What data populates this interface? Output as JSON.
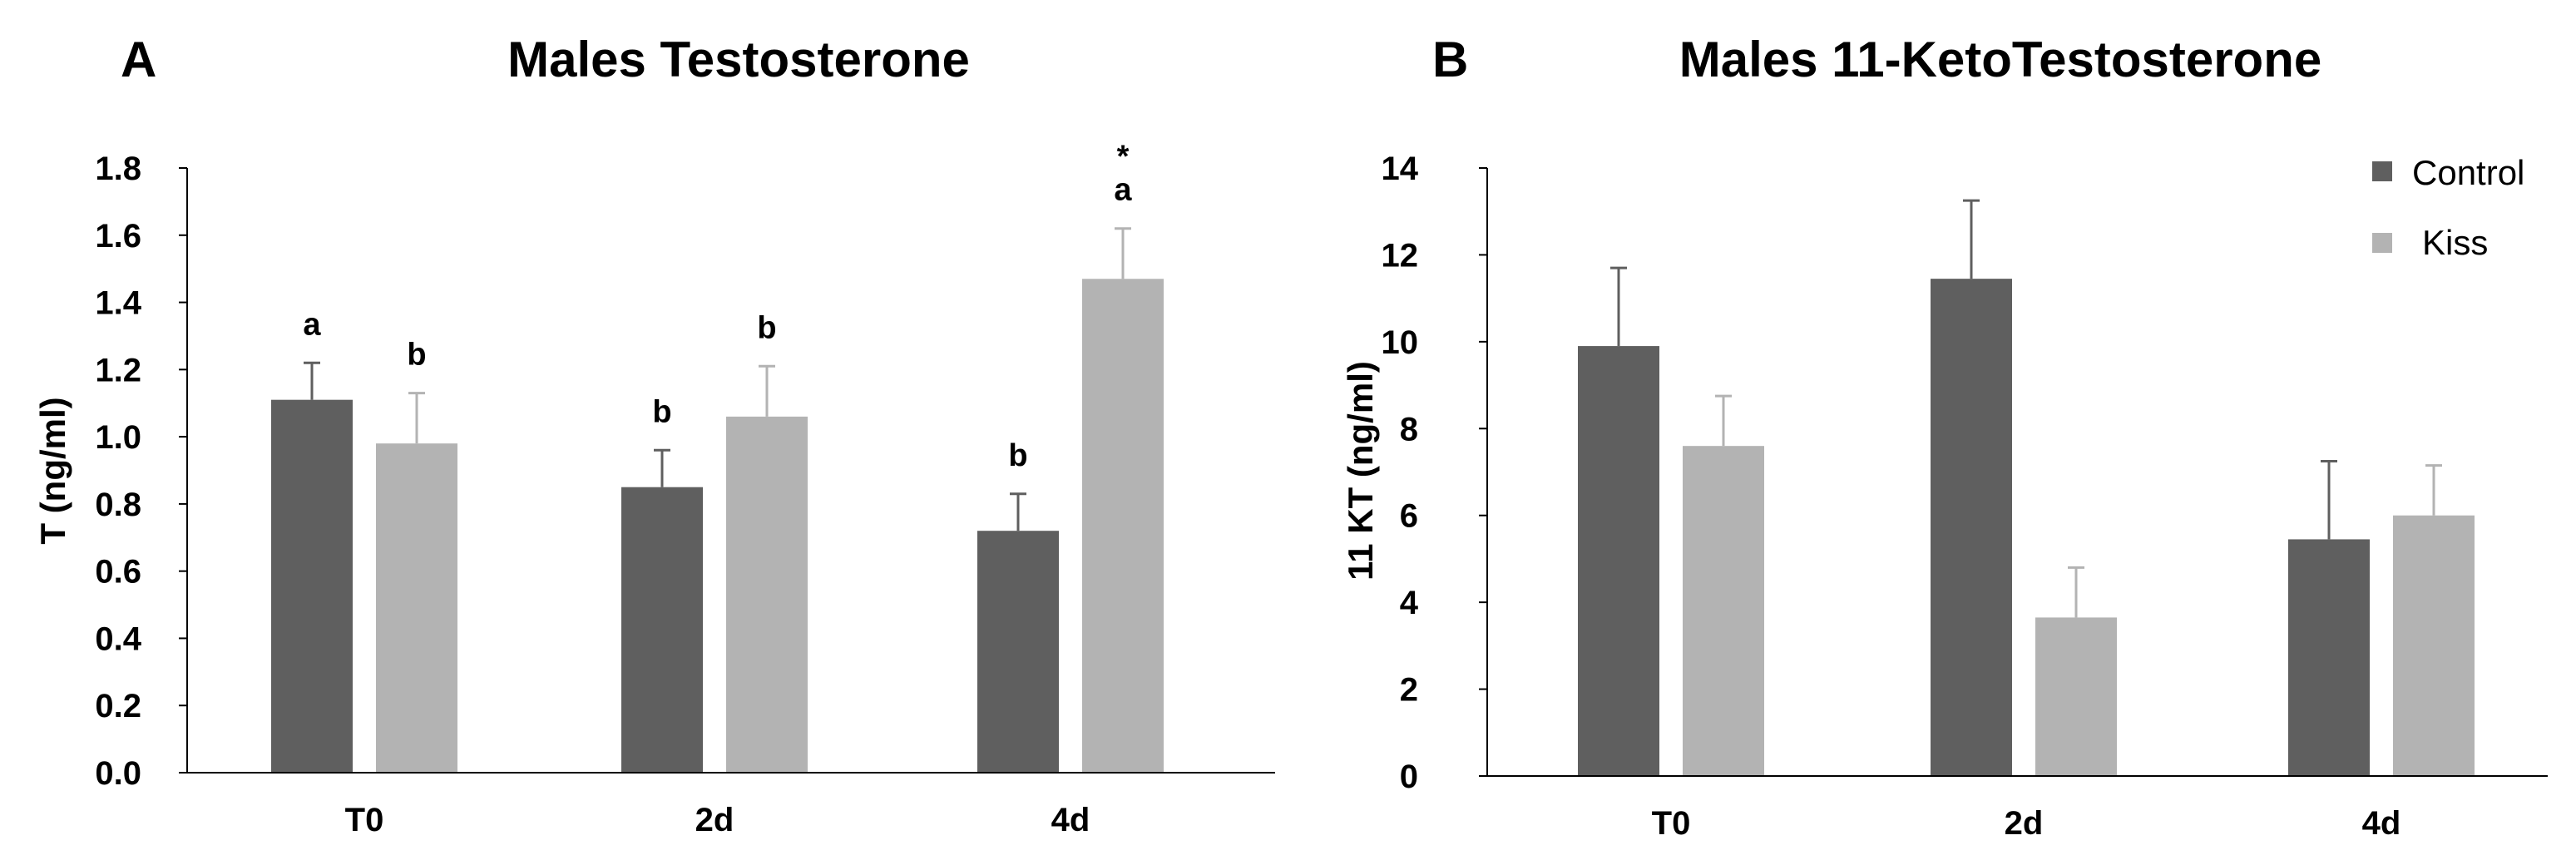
{
  "chart_data": [
    {
      "type": "bar",
      "panel": "A",
      "title": "Males Testosterone",
      "xlabel": "",
      "ylabel": "T (ng/ml)",
      "ylim": [
        0,
        1.8
      ],
      "yticks": [
        "0.0",
        "0.2",
        "0.4",
        "0.6",
        "0.8",
        "1.0",
        "1.2",
        "1.4",
        "1.6",
        "1.8"
      ],
      "categories": [
        "T0",
        "2d",
        "4d"
      ],
      "grid": false,
      "series": [
        {
          "name": "Control",
          "color": "#5f5f5f",
          "values": [
            1.11,
            0.85,
            0.72
          ],
          "errors": [
            0.11,
            0.11,
            0.11
          ],
          "annotations": [
            "a",
            "b",
            "b"
          ]
        },
        {
          "name": "Kiss",
          "color": "#b3b3b3",
          "values": [
            0.98,
            1.06,
            1.47
          ],
          "errors": [
            0.15,
            0.15,
            0.15
          ],
          "annotations": [
            "b",
            "b",
            "a"
          ]
        }
      ],
      "extra_marks": [
        {
          "series": 1,
          "category": 2,
          "text": "*"
        }
      ]
    },
    {
      "type": "bar",
      "panel": "B",
      "title": "Males 11-KetoTestosterone",
      "xlabel": "",
      "ylabel": "11 KT (ng/ml)",
      "ylim": [
        0,
        14
      ],
      "yticks": [
        "0",
        "2",
        "4",
        "6",
        "8",
        "10",
        "12",
        "14"
      ],
      "categories": [
        "T0",
        "2d",
        "4d"
      ],
      "grid": false,
      "legend": {
        "position": "top-right",
        "entries": [
          "Control",
          "Kiss"
        ]
      },
      "series": [
        {
          "name": "Control",
          "color": "#5f5f5f",
          "values": [
            9.9,
            11.45,
            5.45
          ],
          "errors": [
            1.8,
            1.8,
            1.8
          ],
          "annotations": [
            "",
            "",
            ""
          ]
        },
        {
          "name": "Kiss",
          "color": "#b3b3b3",
          "values": [
            7.6,
            3.65,
            6.0
          ],
          "errors": [
            1.15,
            1.15,
            1.15
          ],
          "annotations": [
            "",
            "",
            ""
          ]
        }
      ]
    }
  ]
}
